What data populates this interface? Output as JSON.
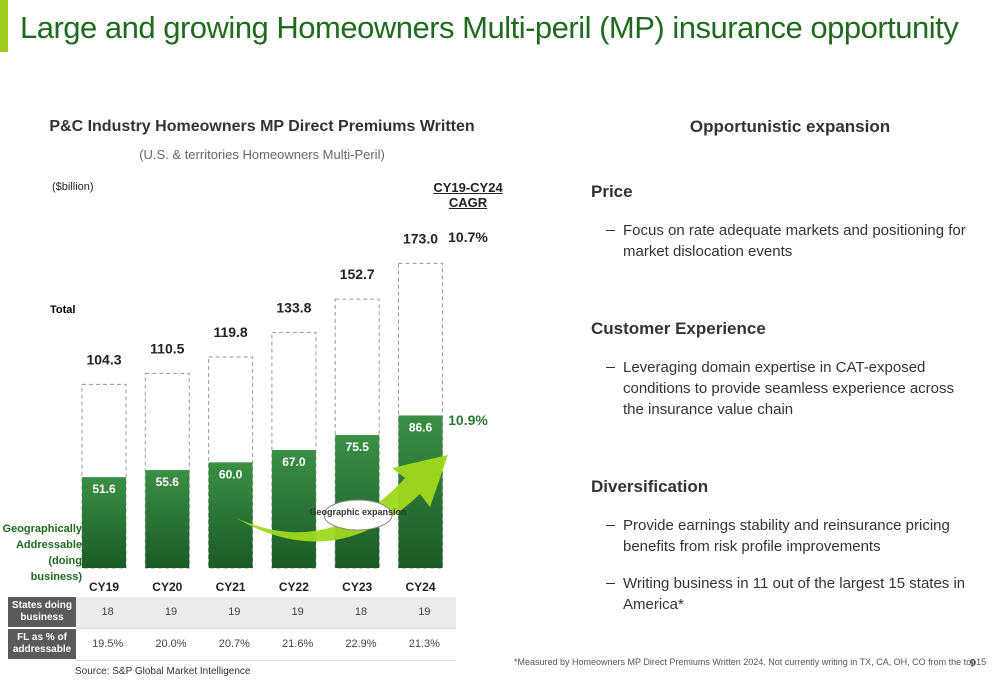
{
  "title": "Large and growing Homeowners Multi-peril (MP) insurance opportunity",
  "chart_data": {
    "type": "bar",
    "title": "P&C Industry Homeowners MP Direct Premiums Written",
    "subtitle": "(U.S. & territories Homeowners Multi-Peril)",
    "unit_label": "($billion)",
    "categories": [
      "CY19",
      "CY20",
      "CY21",
      "CY22",
      "CY23",
      "CY24"
    ],
    "cagr_title": "CY19-CY24 CAGR",
    "series": [
      {
        "name": "Total",
        "color": "#9a9a9a",
        "values": [
          104.3,
          110.5,
          119.8,
          133.8,
          152.7,
          173.0
        ],
        "value_labels": [
          "104.3",
          "110.5",
          "119.8",
          "133.8",
          "152.7",
          "173.0"
        ],
        "cagr": "10.7%"
      },
      {
        "name": "Geographically Addressable (doing business)",
        "color": "#2a7a35",
        "values": [
          51.6,
          55.6,
          60.0,
          67.0,
          75.5,
          86.6
        ],
        "value_labels": [
          "51.6",
          "55.6",
          "60.0",
          "67.0",
          "75.5",
          "86.6"
        ],
        "cagr": "10.9%"
      }
    ],
    "ylim": [
      0,
      180
    ],
    "annotation": "Geographic expansion"
  },
  "table": {
    "rows": [
      {
        "label": "States doing business",
        "cells": [
          18,
          19,
          19,
          19,
          18,
          19
        ]
      },
      {
        "label": "FL as % of addressable",
        "cells": [
          "19.5%",
          "20.0%",
          "20.7%",
          "21.6%",
          "22.9%",
          "21.3%"
        ]
      }
    ]
  },
  "panel": {
    "title": "Opportunistic expansion",
    "sections": [
      {
        "heading": "Price",
        "bullets": [
          "Focus on rate adequate markets and positioning for market dislocation events"
        ]
      },
      {
        "heading": "Customer Experience",
        "bullets": [
          "Leveraging domain expertise in CAT-exposed conditions to provide seamless experience across the insurance value chain"
        ]
      },
      {
        "heading": "Diversification",
        "bullets": [
          "Provide earnings stability and reinsurance pricing benefits from risk profile improvements",
          "Writing business in 11 out of the largest 15 states in America*"
        ]
      }
    ]
  },
  "source": "Source: S&P Global Market Intelligence",
  "footnote": "*Measured by Homeowners MP Direct Premiums Written 2024. Not currently writing in TX, CA, OH, CO from the top15",
  "page": 9
}
